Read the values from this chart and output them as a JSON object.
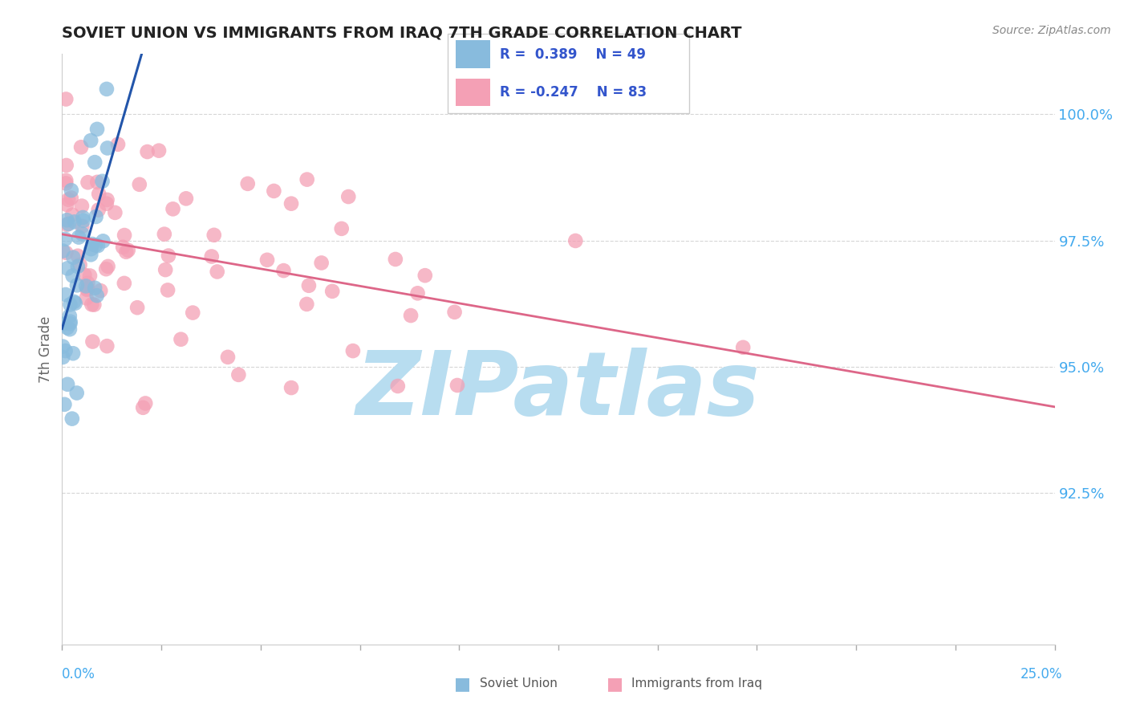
{
  "title": "SOVIET UNION VS IMMIGRANTS FROM IRAQ 7TH GRADE CORRELATION CHART",
  "source_text": "Source: ZipAtlas.com",
  "ylabel": "7th Grade",
  "yticks": [
    92.5,
    95.0,
    97.5,
    100.0
  ],
  "ytick_labels": [
    "92.5%",
    "95.0%",
    "97.5%",
    "100.0%"
  ],
  "xmin": 0.0,
  "xmax": 25.0,
  "ymin": 89.5,
  "ymax": 101.2,
  "color_blue": "#88bbdd",
  "color_pink": "#f4a0b5",
  "watermark": "ZIPatlas",
  "watermark_color": "#b8ddf0",
  "background_color": "#ffffff",
  "grid_color": "#cccccc",
  "soviet_r": 0.389,
  "iraq_r": -0.247,
  "legend_text_color": "#3355cc",
  "ytick_color": "#44aaee",
  "xtick_color": "#44aaee"
}
